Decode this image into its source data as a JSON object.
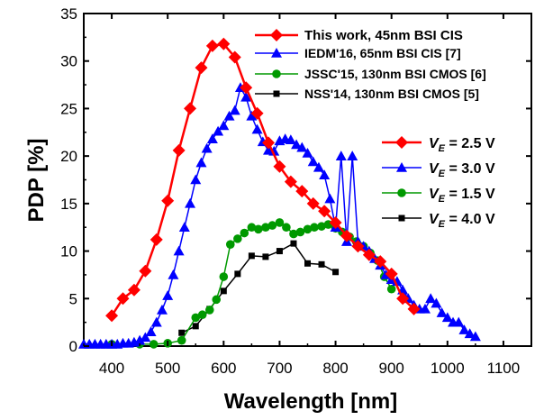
{
  "chart_data": {
    "type": "line",
    "xlabel": "Wavelength [nm]",
    "ylabel": "PDP [%]",
    "xlim": [
      350,
      1150
    ],
    "ylim": [
      0,
      35
    ],
    "xticks": [
      400,
      500,
      600,
      700,
      800,
      900,
      1000,
      1100
    ],
    "yticks": [
      0,
      5,
      10,
      15,
      20,
      25,
      30,
      35
    ],
    "grid": false,
    "legend_position": "top-right",
    "series": [
      {
        "name": "This work, 45nm BSI CIS",
        "ve_label": "2.5 V",
        "color": "#ff0000",
        "marker": "diamond",
        "x": [
          400,
          420,
          440,
          460,
          480,
          500,
          520,
          540,
          560,
          580,
          600,
          620,
          640,
          660,
          680,
          700,
          720,
          740,
          760,
          780,
          800,
          820,
          840,
          860,
          880,
          900,
          920,
          940
        ],
        "y": [
          3.2,
          5.0,
          5.9,
          7.9,
          11.2,
          15.3,
          20.6,
          25.0,
          29.3,
          31.6,
          31.8,
          30.4,
          27.2,
          24.5,
          21.4,
          18.9,
          17.3,
          16.3,
          15.0,
          14.2,
          13.0,
          11.6,
          10.5,
          9.6,
          8.9,
          7.6,
          5.0,
          3.9
        ]
      },
      {
        "name": "IEDM'16, 65nm BSI CIS [7]",
        "ve_label": "3.0 V",
        "color": "#0000ff",
        "marker": "triangle",
        "x": [
          350,
          360,
          370,
          380,
          390,
          400,
          410,
          420,
          430,
          440,
          450,
          460,
          470,
          480,
          490,
          500,
          510,
          520,
          530,
          540,
          550,
          560,
          570,
          580,
          590,
          600,
          610,
          620,
          630,
          640,
          650,
          660,
          670,
          680,
          690,
          700,
          710,
          720,
          730,
          740,
          750,
          760,
          770,
          780,
          790,
          800,
          810,
          820,
          830,
          840,
          850,
          860,
          870,
          880,
          890,
          900,
          910,
          920,
          930,
          940,
          950,
          960,
          970,
          980,
          990,
          1000,
          1010,
          1020,
          1030,
          1040,
          1050
        ],
        "y": [
          0.2,
          0.2,
          0.2,
          0.2,
          0.2,
          0.2,
          0.2,
          0.3,
          0.3,
          0.4,
          0.6,
          0.9,
          1.5,
          2.5,
          3.8,
          5.3,
          7.5,
          10.0,
          12.5,
          15.0,
          17.5,
          19.3,
          20.8,
          21.8,
          22.6,
          23.2,
          24.2,
          24.8,
          27.2,
          26.2,
          24.2,
          22.8,
          21.5,
          20.6,
          20.5,
          21.6,
          21.8,
          21.7,
          21.2,
          20.9,
          20.3,
          19.4,
          18.8,
          18.0,
          15.5,
          12.5,
          20.0,
          11.0,
          20.0,
          11.0,
          10.5,
          10.0,
          9.2,
          8.5,
          7.5,
          7.0,
          6.8,
          5.9,
          5.0,
          4.3,
          3.9,
          3.9,
          5.0,
          4.5,
          3.5,
          3.0,
          2.5,
          2.5,
          1.7,
          1.3,
          1.0
        ]
      },
      {
        "name": "JSSC'15, 130nm BSI CMOS [6]",
        "ve_label": "1.5 V",
        "color": "#009900",
        "marker": "circle",
        "x": [
          400,
          450,
          475,
          500,
          525,
          550,
          562,
          575,
          587,
          600,
          612,
          625,
          637,
          650,
          662,
          675,
          687,
          700,
          712,
          725,
          737,
          750,
          762,
          775,
          787,
          800,
          812,
          825,
          837,
          850,
          862,
          875,
          887,
          900
        ],
        "y": [
          0.2,
          0.2,
          0.2,
          0.3,
          0.6,
          3.0,
          3.3,
          3.8,
          4.9,
          7.3,
          10.7,
          11.3,
          11.9,
          12.5,
          12.3,
          12.5,
          12.7,
          13.0,
          12.5,
          11.8,
          12.0,
          12.3,
          12.5,
          12.6,
          12.8,
          12.4,
          12.0,
          11.5,
          11.0,
          10.5,
          9.8,
          9.0,
          7.3,
          6.0
        ]
      },
      {
        "name": "NSS'14, 130nm BSI CMOS [5]",
        "ve_label": "4.0 V",
        "color": "#000000",
        "marker": "square",
        "x": [
          525,
          550,
          575,
          600,
          625,
          650,
          675,
          700,
          725,
          750,
          775,
          800
        ],
        "y": [
          1.4,
          2.1,
          3.9,
          5.8,
          7.6,
          9.5,
          9.4,
          10.0,
          10.8,
          8.7,
          8.6,
          7.8
        ]
      }
    ]
  },
  "labels": {
    "ve_symbol": "V",
    "ve_subscript": "E",
    "ve_equals": " = "
  }
}
